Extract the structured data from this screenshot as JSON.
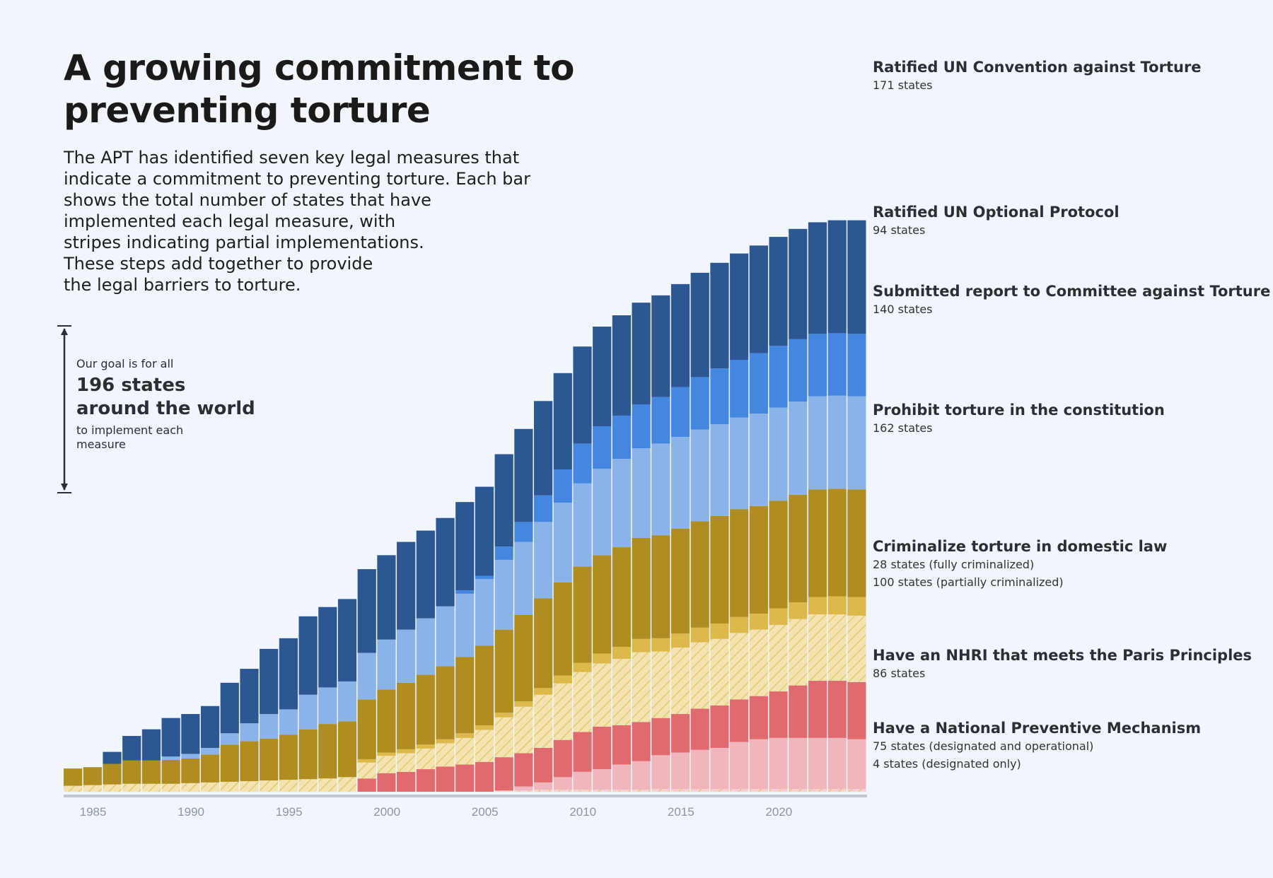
{
  "title": "A growing commitment to preventing torture",
  "intro_lines": [
    "The APT has identified seven key legal measures that",
    "indicate a commitment to preventing torture. Each bar",
    "shows the total number of states that have",
    "implemented each legal measure, with",
    "stripes indicating partial implementations.",
    "These steps add together to provide",
    "the legal barriers to torture."
  ],
  "goal": {
    "pre": "Our goal is for all",
    "line1": "196 states",
    "line2": "around the world",
    "post": "to implement each measure"
  },
  "labels": [
    {
      "title": "Ratified UN Convention against Torture",
      "sub": [
        "171 states"
      ]
    },
    {
      "title": "Ratified UN Optional Protocol",
      "sub": [
        "94 states"
      ]
    },
    {
      "title": "Submitted report to Committee against Torture",
      "sub": [
        "140 states"
      ]
    },
    {
      "title": "Prohibit torture in the constitution",
      "sub": [
        "162 states"
      ]
    },
    {
      "title": "Criminalize torture in domestic law",
      "sub": [
        "28 states (fully criminalized)",
        "100 states (partially criminalized)"
      ]
    },
    {
      "title": "Have an NHRI that meets the Paris Principles",
      "sub": [
        "86 states"
      ]
    },
    {
      "title": "Have a National Preventive Mechanism",
      "sub": [
        "75 states (designated and operational)",
        "4 states (designated only)"
      ]
    }
  ],
  "chart_data": {
    "type": "bar",
    "stacked": true,
    "title": "A growing commitment to preventing torture",
    "x_tick_labels": [
      "1985",
      "1990",
      "1995",
      "2000",
      "2005",
      "2010",
      "2015",
      "2020"
    ],
    "years": [
      1984,
      1985,
      1986,
      1987,
      1988,
      1989,
      1990,
      1991,
      1992,
      1993,
      1994,
      1995,
      1996,
      1997,
      1998,
      1999,
      2000,
      2001,
      2002,
      2003,
      2004,
      2005,
      2006,
      2007,
      2008,
      2009,
      2010,
      2011,
      2012,
      2013,
      2014,
      2015,
      2016,
      2017,
      2018,
      2019,
      2020,
      2021,
      2022,
      2023,
      2024
    ],
    "ylim": [
      0,
      1100
    ],
    "series": [
      {
        "name": "NPM designated only",
        "color": "#f7d0d4",
        "pattern": "hatch",
        "values": [
          0,
          0,
          0,
          0,
          0,
          0,
          0,
          0,
          0,
          0,
          0,
          0,
          0,
          0,
          0,
          0,
          0,
          0,
          0,
          0,
          0,
          0,
          1,
          2,
          3,
          3,
          3,
          3,
          3,
          3,
          4,
          4,
          4,
          4,
          4,
          4,
          4,
          4,
          4,
          4,
          4
        ]
      },
      {
        "name": "NPM designated and operational",
        "color": "#f1b6bc",
        "values": [
          0,
          0,
          0,
          0,
          0,
          0,
          0,
          0,
          0,
          0,
          0,
          0,
          0,
          0,
          0,
          0,
          0,
          0,
          0,
          0,
          0,
          0,
          1,
          6,
          11,
          19,
          27,
          31,
          38,
          43,
          51,
          55,
          59,
          62,
          71,
          75,
          77,
          77,
          77,
          77,
          75
        ]
      },
      {
        "name": "NHRI meets Paris Principles",
        "color": "#e06a6e",
        "values": [
          0,
          0,
          0,
          0,
          0,
          0,
          0,
          0,
          0,
          0,
          0,
          0,
          0,
          0,
          0,
          20,
          28,
          30,
          34,
          38,
          41,
          45,
          50,
          50,
          52,
          56,
          60,
          64,
          59,
          59,
          56,
          58,
          62,
          64,
          64,
          65,
          70,
          79,
          86,
          86,
          86
        ]
      },
      {
        "name": "Criminalized partially",
        "color": "#f3e3b1",
        "pattern": "hatch",
        "values": [
          9,
          10,
          11,
          12,
          12,
          12,
          13,
          14,
          15,
          16,
          17,
          18,
          19,
          20,
          22,
          24,
          26,
          28,
          31,
          35,
          40,
          48,
          60,
          70,
          80,
          85,
          90,
          95,
          100,
          105,
          100,
          100,
          100,
          100,
          100,
          100,
          100,
          100,
          100,
          100,
          100
        ]
      },
      {
        "name": "Criminalized fully",
        "color": "#dcb94a",
        "values": [
          0,
          0,
          0,
          0,
          0,
          0,
          0,
          0,
          0,
          0,
          0,
          0,
          0,
          0,
          0,
          5,
          5,
          6,
          6,
          6,
          7,
          7,
          7,
          8,
          10,
          12,
          14,
          15,
          18,
          20,
          20,
          21,
          22,
          23,
          24,
          24,
          25,
          25,
          26,
          27,
          28
        ]
      },
      {
        "name": "Constitutional prohibition",
        "color": "#b08d20",
        "values": [
          26,
          27,
          31,
          35,
          35,
          36,
          37,
          42,
          56,
          60,
          63,
          68,
          75,
          82,
          84,
          90,
          95,
          100,
          105,
          110,
          115,
          120,
          125,
          130,
          135,
          140,
          145,
          148,
          150,
          152,
          155,
          158,
          160,
          162,
          162,
          162,
          162,
          162,
          162,
          162,
          162
        ]
      },
      {
        "name": "Report submitted to CAT",
        "color": "#8ab3ea",
        "values": [
          0,
          0,
          0,
          0,
          0,
          5,
          7,
          10,
          17,
          27,
          37,
          38,
          52,
          55,
          60,
          70,
          75,
          80,
          85,
          90,
          95,
          100,
          105,
          110,
          115,
          120,
          125,
          130,
          133,
          135,
          138,
          138,
          138,
          138,
          138,
          139,
          140,
          140,
          140,
          140,
          140
        ]
      },
      {
        "name": "Ratified OPCAT",
        "color": "#4487e0",
        "values": [
          0,
          0,
          0,
          0,
          0,
          0,
          0,
          0,
          0,
          0,
          0,
          0,
          0,
          0,
          0,
          0,
          0,
          0,
          0,
          0,
          5,
          5,
          20,
          30,
          40,
          50,
          60,
          64,
          65,
          66,
          70,
          75,
          79,
          84,
          87,
          91,
          93,
          94,
          94,
          94,
          94
        ]
      },
      {
        "name": "Ratified CAT",
        "color": "#2d5793",
        "values": [
          0,
          0,
          18,
          37,
          47,
          58,
          60,
          63,
          76,
          82,
          98,
          107,
          118,
          121,
          124,
          126,
          127,
          132,
          132,
          133,
          133,
          134,
          139,
          140,
          142,
          145,
          146,
          150,
          151,
          153,
          153,
          155,
          157,
          159,
          160,
          162,
          164,
          166,
          168,
          170,
          171
        ]
      }
    ],
    "annotations": [
      "Ratified UN Convention against Torture",
      "Ratified UN Optional Protocol",
      "Submitted report to Committee against Torture",
      "Prohibit torture in the constitution",
      "Criminalize torture in domestic law",
      "Have an NHRI that meets the Paris Principles",
      "Have a National Preventive Mechanism"
    ]
  }
}
